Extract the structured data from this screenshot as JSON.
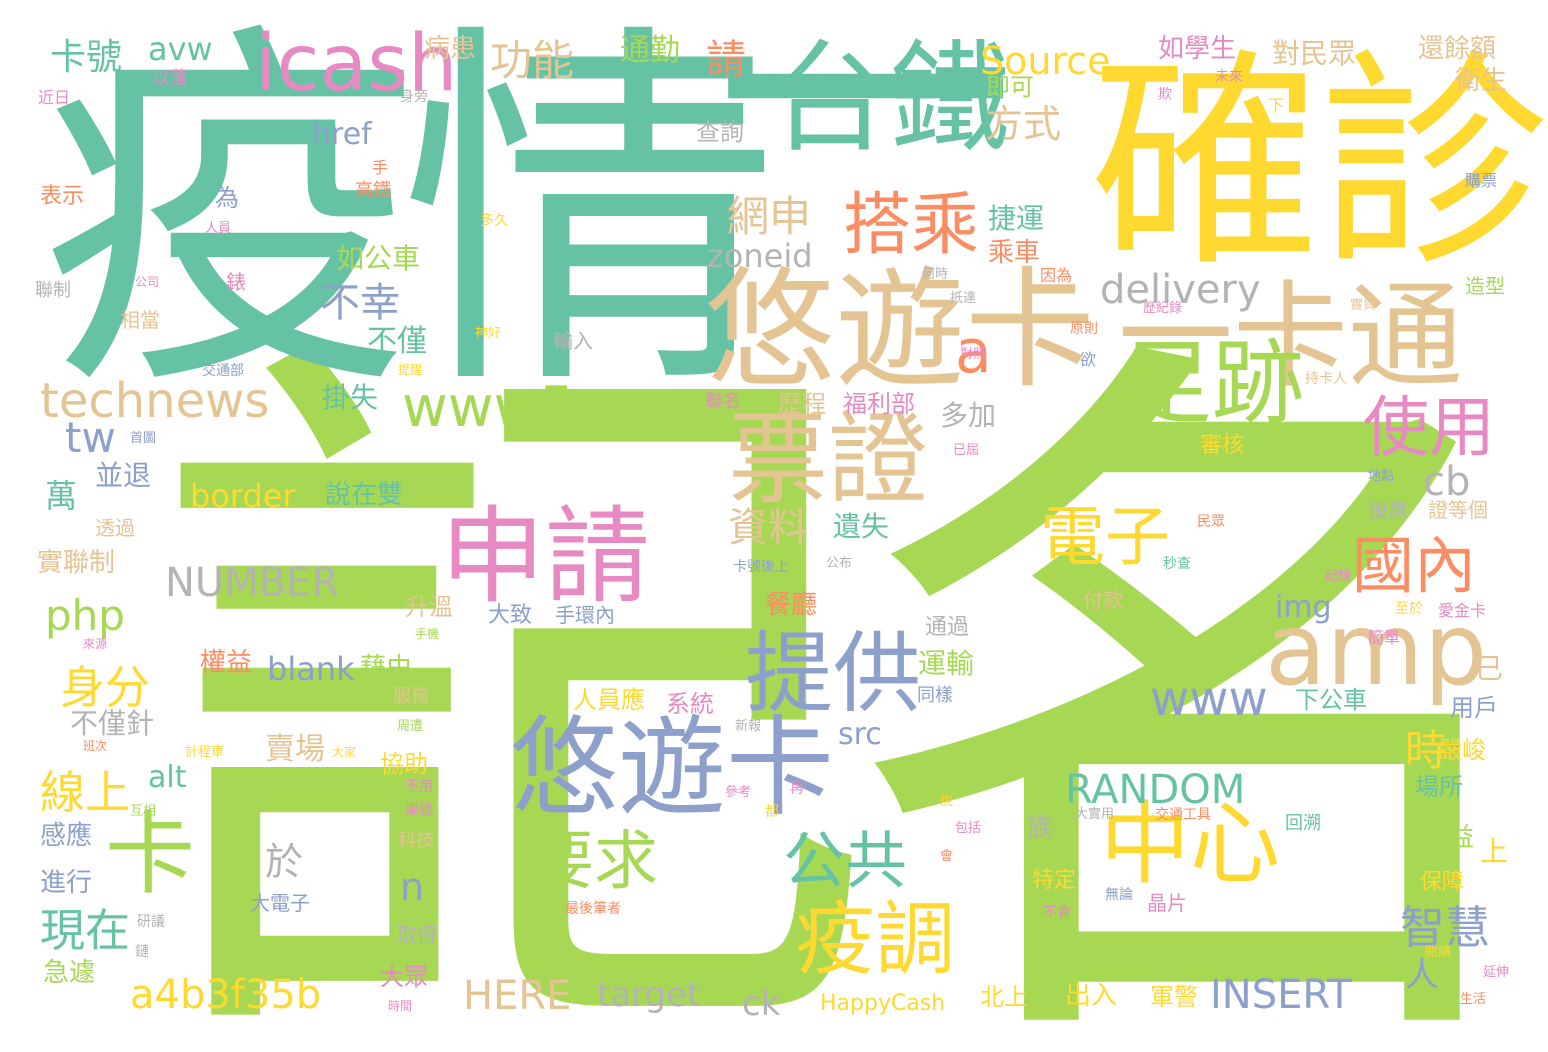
{
  "palette": {
    "green": "#a6d854",
    "teal": "#66c2a5",
    "yellow": "#ffd92f",
    "tan": "#e5c494",
    "blue": "#8da0cb",
    "pink": "#e78ac3",
    "orange": "#fc8d62",
    "gray": "#b3b3b3",
    "background": "#ffffff"
  },
  "words": [
    {
      "text": "記名",
      "color": "green",
      "icon": ""
    },
    {
      "text": "疫情",
      "color": "teal"
    },
    {
      "text": "一",
      "color": "teal"
    },
    {
      "text": "確診",
      "color": "yellow"
    },
    {
      "text": "台鐵",
      "color": "teal"
    },
    {
      "text": "悠遊卡",
      "color": "tan"
    },
    {
      "text": "一卡通",
      "color": "tan"
    },
    {
      "text": "icash",
      "color": "pink"
    },
    {
      "text": "票證",
      "color": "tan"
    },
    {
      "text": "足跡",
      "color": "green"
    },
    {
      "text": "amp",
      "color": "tan"
    },
    {
      "text": "申請",
      "color": "pink"
    },
    {
      "text": "悠遊卡",
      "color": "blue"
    },
    {
      "text": "中心",
      "color": "yellow"
    },
    {
      "text": "搭乘",
      "color": "orange"
    },
    {
      "text": "提供",
      "color": "blue"
    },
    {
      "text": "卡",
      "color": "green"
    },
    {
      "text": "www5",
      "color": "green"
    },
    {
      "text": "technews",
      "color": "tan"
    },
    {
      "text": "使用",
      "color": "pink"
    },
    {
      "text": "疫調",
      "color": "yellow"
    },
    {
      "text": "電子",
      "color": "yellow"
    },
    {
      "text": "國內",
      "color": "orange"
    },
    {
      "text": "要求",
      "color": "green"
    },
    {
      "text": "公共",
      "color": "teal"
    },
    {
      "text": "a4b3f35b",
      "color": "yellow"
    },
    {
      "text": "RANDOM",
      "color": "teal"
    },
    {
      "text": "INSERT",
      "color": "blue"
    },
    {
      "text": "HERE",
      "color": "tan"
    },
    {
      "text": "NUMBER",
      "color": "gray"
    },
    {
      "text": "delivery",
      "color": "gray"
    },
    {
      "text": "Source",
      "color": "yellow"
    },
    {
      "text": "網申",
      "color": "tan"
    },
    {
      "text": "功能",
      "color": "tan"
    },
    {
      "text": "現在",
      "color": "teal"
    },
    {
      "text": "線上",
      "color": "yellow"
    },
    {
      "text": "身分",
      "color": "yellow"
    },
    {
      "text": "智慧",
      "color": "blue"
    },
    {
      "text": "www",
      "color": "blue"
    },
    {
      "text": "於",
      "color": "gray"
    },
    {
      "text": "php",
      "color": "green"
    },
    {
      "text": "tw",
      "color": "blue"
    },
    {
      "text": "卡號",
      "color": "teal"
    },
    {
      "text": "avw",
      "color": "teal"
    },
    {
      "text": "資料",
      "color": "tan"
    },
    {
      "text": "不幸",
      "color": "blue"
    },
    {
      "text": "cb",
      "color": "gray"
    },
    {
      "text": "時",
      "color": "yellow"
    },
    {
      "text": "a",
      "color": "orange"
    },
    {
      "text": "n",
      "color": "blue"
    },
    {
      "text": "target",
      "color": "gray"
    },
    {
      "text": "ck",
      "color": "gray"
    },
    {
      "text": "border",
      "color": "yellow"
    },
    {
      "text": "blank",
      "color": "blue"
    },
    {
      "text": "zoneid",
      "color": "gray"
    },
    {
      "text": "href",
      "color": "blue"
    },
    {
      "text": "src",
      "color": "blue"
    },
    {
      "text": "alt",
      "color": "teal"
    },
    {
      "text": "img",
      "color": "blue"
    },
    {
      "text": "HappyCash",
      "color": "yellow"
    },
    {
      "text": "方式",
      "color": "tan"
    },
    {
      "text": "請",
      "color": "orange"
    },
    {
      "text": "通勤",
      "color": "green"
    },
    {
      "text": "如學生",
      "color": "pink"
    },
    {
      "text": "對民眾",
      "color": "tan"
    },
    {
      "text": "還餘額",
      "color": "tan"
    },
    {
      "text": "衛生",
      "color": "tan"
    },
    {
      "text": "病患",
      "color": "tan"
    },
    {
      "text": "以落",
      "color": "pink"
    },
    {
      "text": "近日",
      "color": "pink"
    },
    {
      "text": "未來",
      "color": "pink"
    },
    {
      "text": "欺",
      "color": "pink"
    },
    {
      "text": "即可",
      "color": "green"
    },
    {
      "text": "查詢",
      "color": "gray"
    },
    {
      "text": "下",
      "color": "yellow"
    },
    {
      "text": "身旁",
      "color": "gray"
    },
    {
      "text": "手",
      "color": "orange"
    },
    {
      "text": "高鐵",
      "color": "orange"
    },
    {
      "text": "表示",
      "color": "orange"
    },
    {
      "text": "為",
      "color": "blue"
    },
    {
      "text": "人員",
      "color": "pink"
    },
    {
      "text": "多久",
      "color": "yellow"
    },
    {
      "text": "捷運",
      "color": "teal"
    },
    {
      "text": "乘車",
      "color": "orange"
    },
    {
      "text": "如公車",
      "color": "green"
    },
    {
      "text": "購票",
      "color": "blue"
    },
    {
      "text": "造型",
      "color": "green"
    },
    {
      "text": "聯制",
      "color": "gray"
    },
    {
      "text": "公司",
      "color": "pink"
    },
    {
      "text": "錶",
      "color": "pink"
    },
    {
      "text": "何時",
      "color": "gray"
    },
    {
      "text": "因為",
      "color": "orange"
    },
    {
      "text": "抵達",
      "color": "gray"
    },
    {
      "text": "實貿",
      "color": "tan"
    },
    {
      "text": "歷紀錄",
      "color": "pink"
    },
    {
      "text": "相當",
      "color": "tan"
    },
    {
      "text": "不僅",
      "color": "teal"
    },
    {
      "text": "輸入",
      "color": "gray"
    },
    {
      "text": "神好",
      "color": "yellow"
    },
    {
      "text": "原則",
      "color": "orange"
    },
    {
      "text": "欲",
      "color": "blue"
    },
    {
      "text": "交通部",
      "color": "blue"
    },
    {
      "text": "提醒",
      "color": "yellow"
    },
    {
      "text": "對照",
      "color": "pink"
    },
    {
      "text": "持卡人",
      "color": "tan"
    },
    {
      "text": "掛失",
      "color": "teal"
    },
    {
      "text": "呼籲",
      "color": "green"
    },
    {
      "text": "聯名",
      "color": "pink"
    },
    {
      "text": "歷程",
      "color": "tan"
    },
    {
      "text": "福利部",
      "color": "pink"
    },
    {
      "text": "多加",
      "color": "gray"
    },
    {
      "text": "首圖",
      "color": "blue"
    },
    {
      "text": "已屆",
      "color": "pink"
    },
    {
      "text": "結合",
      "color": "green"
    },
    {
      "text": "審核",
      "color": "yellow"
    },
    {
      "text": "可享",
      "color": "green"
    },
    {
      "text": "地點",
      "color": "blue"
    },
    {
      "text": "並退",
      "color": "blue"
    },
    {
      "text": "萬",
      "color": "teal"
    },
    {
      "text": "說在雙",
      "color": "teal"
    },
    {
      "text": "優惠",
      "color": "gray"
    },
    {
      "text": "證等個",
      "color": "tan"
    },
    {
      "text": "透過",
      "color": "tan"
    },
    {
      "text": "遺失",
      "color": "teal"
    },
    {
      "text": "公布",
      "color": "gray"
    },
    {
      "text": "實聯制",
      "color": "tan"
    },
    {
      "text": "卡號後上",
      "color": "blue"
    },
    {
      "text": "民眾",
      "color": "orange"
    },
    {
      "text": "紀錄",
      "color": "pink"
    },
    {
      "text": "秒查",
      "color": "teal"
    },
    {
      "text": "升溫",
      "color": "tan"
    },
    {
      "text": "大致",
      "color": "blue"
    },
    {
      "text": "手環內",
      "color": "blue"
    },
    {
      "text": "餐廳",
      "color": "orange"
    },
    {
      "text": "付款",
      "color": "tan"
    },
    {
      "text": "至於",
      "color": "yellow"
    },
    {
      "text": "愛金卡",
      "color": "pink"
    },
    {
      "text": "簡單",
      "color": "pink"
    },
    {
      "text": "通過",
      "color": "gray"
    },
    {
      "text": "來源",
      "color": "pink"
    },
    {
      "text": "手機",
      "color": "green"
    },
    {
      "text": "藉由",
      "color": "green"
    },
    {
      "text": "權益",
      "color": "orange"
    },
    {
      "text": "服務",
      "color": "tan"
    },
    {
      "text": "已",
      "color": "tan"
    },
    {
      "text": "用戶",
      "color": "blue"
    },
    {
      "text": "不僅針",
      "color": "gray"
    },
    {
      "text": "人員應",
      "color": "yellow"
    },
    {
      "text": "系統",
      "color": "pink"
    },
    {
      "text": "下公車",
      "color": "teal"
    },
    {
      "text": "運輸",
      "color": "green"
    },
    {
      "text": "同樣",
      "color": "blue"
    },
    {
      "text": "班次",
      "color": "orange"
    },
    {
      "text": "周遭",
      "color": "green"
    },
    {
      "text": "新報",
      "color": "gray"
    },
    {
      "text": "計程車",
      "color": "yellow"
    },
    {
      "text": "大家",
      "color": "yellow"
    },
    {
      "text": "嚴峻",
      "color": "yellow"
    },
    {
      "text": "賣場",
      "color": "tan"
    },
    {
      "text": "協助",
      "color": "yellow"
    },
    {
      "text": "場所",
      "color": "teal"
    },
    {
      "text": "互相",
      "color": "green"
    },
    {
      "text": "不用",
      "color": "pink"
    },
    {
      "text": "參考",
      "color": "pink"
    },
    {
      "text": "再",
      "color": "pink"
    },
    {
      "text": "車號",
      "color": "pink"
    },
    {
      "text": "都",
      "color": "yellow"
    },
    {
      "text": "說",
      "color": "yellow"
    },
    {
      "text": "大實用",
      "color": "gray"
    },
    {
      "text": "交通工具",
      "color": "orange"
    },
    {
      "text": "回溯",
      "color": "teal"
    },
    {
      "text": "有益",
      "color": "green"
    },
    {
      "text": "感應",
      "color": "blue"
    },
    {
      "text": "科技",
      "color": "tan"
    },
    {
      "text": "族",
      "color": "gray"
    },
    {
      "text": "包括",
      "color": "pink"
    },
    {
      "text": "會",
      "color": "orange"
    },
    {
      "text": "上",
      "color": "yellow"
    },
    {
      "text": "進行",
      "color": "blue"
    },
    {
      "text": "大電子",
      "color": "blue"
    },
    {
      "text": "特定",
      "color": "yellow"
    },
    {
      "text": "臨櫃",
      "color": "green"
    },
    {
      "text": "保障",
      "color": "yellow"
    },
    {
      "text": "研議",
      "color": "gray"
    },
    {
      "text": "無論",
      "color": "blue"
    },
    {
      "text": "不會",
      "color": "pink"
    },
    {
      "text": "晶片",
      "color": "pink"
    },
    {
      "text": "最後筆者",
      "color": "orange"
    },
    {
      "text": "閱讀",
      "color": "yellow"
    },
    {
      "text": "急遽",
      "color": "green"
    },
    {
      "text": "鏈",
      "color": "gray"
    },
    {
      "text": "取得",
      "color": "gray"
    },
    {
      "text": "大眾",
      "color": "pink"
    },
    {
      "text": "時間",
      "color": "pink"
    },
    {
      "text": "北上",
      "color": "yellow"
    },
    {
      "text": "出入",
      "color": "yellow"
    },
    {
      "text": "軍警",
      "color": "yellow"
    },
    {
      "text": "人",
      "color": "blue"
    },
    {
      "text": "延伸",
      "color": "pink"
    },
    {
      "text": "生活",
      "color": "orange"
    }
  ]
}
